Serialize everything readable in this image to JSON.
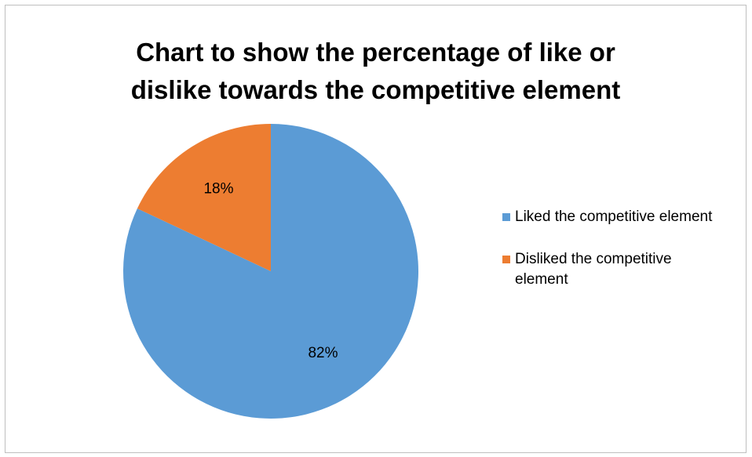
{
  "chart_data": {
    "type": "pie",
    "title_lines": [
      "Chart to show the percentage of like or",
      "dislike towards the competitive element"
    ],
    "slices": [
      {
        "name": "Liked the competitive element",
        "value": 82,
        "label": "82%",
        "color": "#5B9BD5"
      },
      {
        "name": "Disliked the competitive element",
        "value": 18,
        "label": "18%",
        "color": "#ED7D31"
      }
    ],
    "start_angle_deg": 0,
    "direction": "clockwise",
    "legend_position": "right"
  }
}
